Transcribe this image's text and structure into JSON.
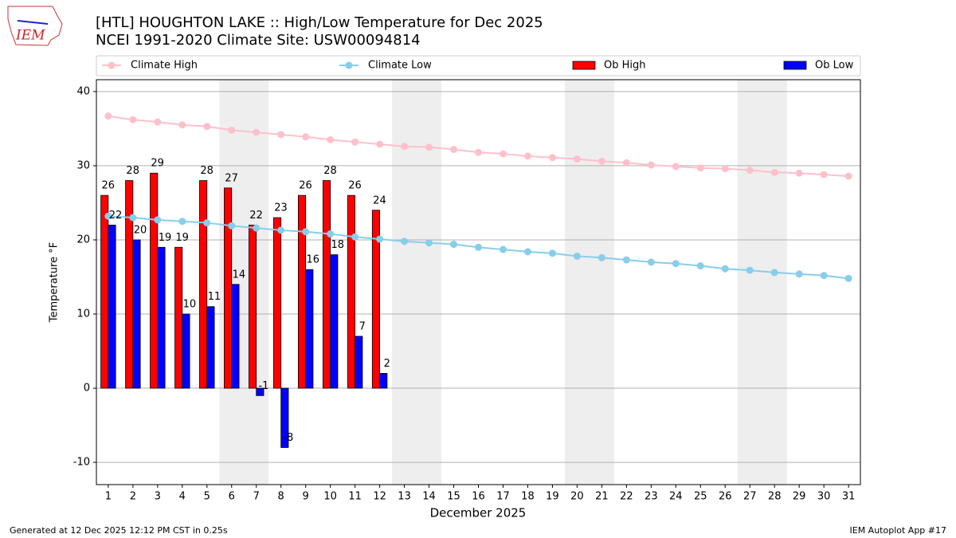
{
  "chart_data": {
    "type": "bar_line",
    "title": "[HTL] HOUGHTON LAKE :: High/Low Temperature for Dec 2025",
    "subtitle": "NCEI 1991-2020 Climate Site: USW00094814",
    "xlabel": "December 2025",
    "ylabel": "Temperature °F",
    "logo_text": "IEM",
    "footer_left": "Generated at 12 Dec 2025 12:12 PM CST in 0.25s",
    "footer_right": "IEM Autoplot App #17",
    "x": [
      1,
      2,
      3,
      4,
      5,
      6,
      7,
      8,
      9,
      10,
      11,
      12,
      13,
      14,
      15,
      16,
      17,
      18,
      19,
      20,
      21,
      22,
      23,
      24,
      25,
      26,
      27,
      28,
      29,
      30,
      31
    ],
    "xlim": [
      0.52,
      31.48
    ],
    "xticks": [
      1,
      2,
      3,
      4,
      5,
      6,
      7,
      8,
      9,
      10,
      11,
      12,
      13,
      14,
      15,
      16,
      17,
      18,
      19,
      20,
      21,
      22,
      23,
      24,
      25,
      26,
      27,
      28,
      29,
      30,
      31
    ],
    "ylim": [
      -13.0,
      41.6
    ],
    "yticks": [
      -10,
      0,
      10,
      20,
      30,
      40
    ],
    "grid": true,
    "legend": "top",
    "shaded_x_ranges": [
      [
        5.5,
        7.5
      ],
      [
        12.5,
        14.5
      ],
      [
        19.5,
        21.5
      ],
      [
        26.5,
        28.5
      ]
    ],
    "series": [
      {
        "name": "Climate High",
        "kind": "line",
        "color": "#ffc0cb",
        "values": [
          36.7,
          36.2,
          35.9,
          35.5,
          35.3,
          34.8,
          34.5,
          34.2,
          33.9,
          33.5,
          33.2,
          32.9,
          32.6,
          32.5,
          32.2,
          31.8,
          31.6,
          31.3,
          31.1,
          30.9,
          30.6,
          30.4,
          30.1,
          29.9,
          29.7,
          29.6,
          29.4,
          29.1,
          29.0,
          28.8,
          28.6
        ]
      },
      {
        "name": "Climate Low",
        "kind": "line",
        "color": "#87ceeb",
        "values": [
          23.2,
          23.0,
          22.7,
          22.5,
          22.3,
          21.9,
          21.6,
          21.3,
          21.1,
          20.8,
          20.4,
          20.1,
          19.8,
          19.6,
          19.4,
          19.0,
          18.7,
          18.4,
          18.2,
          17.8,
          17.6,
          17.3,
          17.0,
          16.8,
          16.5,
          16.1,
          15.9,
          15.6,
          15.4,
          15.2,
          14.8
        ]
      },
      {
        "name": "Ob High",
        "kind": "bar",
        "color": "#ff0000",
        "values": [
          26,
          28,
          29,
          19,
          28,
          27,
          22,
          23,
          26,
          28,
          26,
          24,
          null,
          null,
          null,
          null,
          null,
          null,
          null,
          null,
          null,
          null,
          null,
          null,
          null,
          null,
          null,
          null,
          null,
          null,
          null
        ]
      },
      {
        "name": "Ob Low",
        "kind": "bar",
        "color": "#0000ff",
        "values": [
          22,
          20,
          19,
          10,
          11,
          14,
          -1,
          -8,
          16,
          18,
          7,
          2,
          null,
          null,
          null,
          null,
          null,
          null,
          null,
          null,
          null,
          null,
          null,
          null,
          null,
          null,
          null,
          null,
          null,
          null,
          null
        ]
      }
    ]
  }
}
